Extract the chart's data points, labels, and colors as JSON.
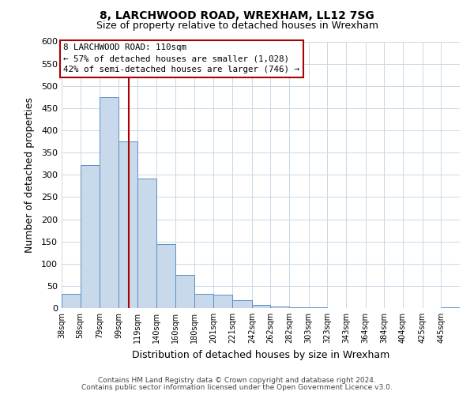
{
  "title1": "8, LARCHWOOD ROAD, WREXHAM, LL12 7SG",
  "title2": "Size of property relative to detached houses in Wrexham",
  "xlabel": "Distribution of detached houses by size in Wrexham",
  "ylabel": "Number of detached properties",
  "bin_labels": [
    "38sqm",
    "58sqm",
    "79sqm",
    "99sqm",
    "119sqm",
    "140sqm",
    "160sqm",
    "180sqm",
    "201sqm",
    "221sqm",
    "242sqm",
    "262sqm",
    "282sqm",
    "303sqm",
    "323sqm",
    "343sqm",
    "364sqm",
    "384sqm",
    "404sqm",
    "425sqm",
    "445sqm"
  ],
  "bin_edges": [
    38,
    58,
    79,
    99,
    119,
    140,
    160,
    180,
    201,
    221,
    242,
    262,
    282,
    303,
    323,
    343,
    364,
    384,
    404,
    425,
    445,
    465
  ],
  "bar_heights": [
    32,
    322,
    474,
    375,
    291,
    144,
    75,
    32,
    30,
    17,
    8,
    3,
    1,
    1,
    0,
    0,
    0,
    0,
    0,
    0,
    2
  ],
  "bar_color": "#c9d9ec",
  "bar_edge_color": "#5a8fc2",
  "red_line_x": 110,
  "annotation_title": "8 LARCHWOOD ROAD: 110sqm",
  "annotation_line1": "← 57% of detached houses are smaller (1,028)",
  "annotation_line2": "42% of semi-detached houses are larger (746) →",
  "annotation_box_color": "#ffffff",
  "annotation_box_edge": "#aa0000",
  "red_line_color": "#aa0000",
  "ylim": [
    0,
    600
  ],
  "yticks": [
    0,
    50,
    100,
    150,
    200,
    250,
    300,
    350,
    400,
    450,
    500,
    550,
    600
  ],
  "footer1": "Contains HM Land Registry data © Crown copyright and database right 2024.",
  "footer2": "Contains public sector information licensed under the Open Government Licence v3.0.",
  "bg_color": "#ffffff",
  "grid_color": "#c8d8e8"
}
